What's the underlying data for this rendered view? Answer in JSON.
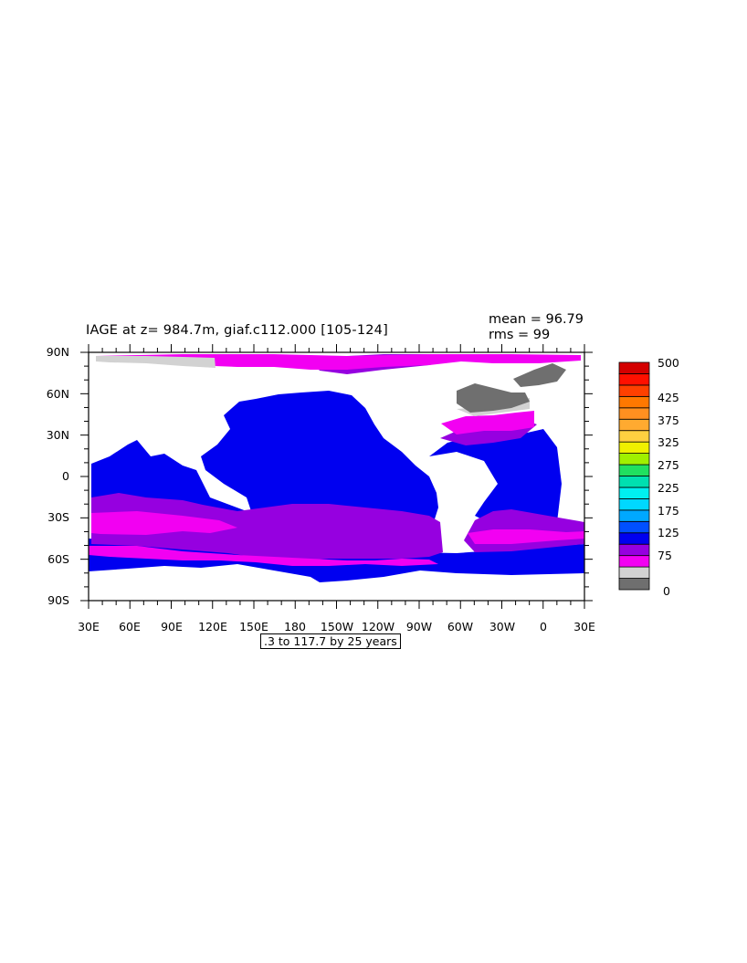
{
  "map": {
    "title": "IAGE at z= 984.7m, giaf.c112.000 [105-124]",
    "mean_text": "mean = 96.79",
    "rms_text": "rms = 99",
    "contour_note": ".3 to 117.7 by 25 years",
    "lat_labels": [
      "90N",
      "60N",
      "30N",
      "0",
      "30S",
      "60S",
      "90S"
    ],
    "lon_labels": [
      "30E",
      "60E",
      "90E",
      "120E",
      "150E",
      "180",
      "150W",
      "120W",
      "90W",
      "60W",
      "30W",
      "0",
      "30E"
    ],
    "projection": "equirectangular",
    "land_color": "#ffffff"
  },
  "colorbar": {
    "labels": [
      "500",
      "425",
      "375",
      "325",
      "275",
      "225",
      "175",
      "125",
      "75",
      "0"
    ],
    "colors": [
      "#6f6f6f",
      "#d2d2d2",
      "#f200f2",
      "#9600e0",
      "#0000f0",
      "#0050ff",
      "#00a8ff",
      "#00d8ff",
      "#00f0f0",
      "#00e0b0",
      "#20e060",
      "#a0f000",
      "#f0f000",
      "#ffd040",
      "#ffaa30",
      "#ff9020",
      "#ff7800",
      "#ff4000",
      "#ff1000",
      "#d40000"
    ]
  }
}
